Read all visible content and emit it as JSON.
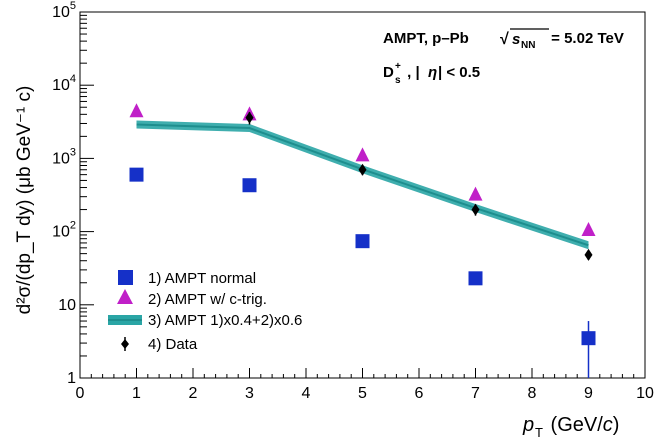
{
  "chart_data": {
    "type": "scatter",
    "log_y": true,
    "xlim": [
      0,
      10
    ],
    "ylim": [
      1,
      100000
    ],
    "x_ticks": [
      0,
      1,
      2,
      3,
      4,
      5,
      6,
      7,
      8,
      9,
      10
    ],
    "y_ticks": [
      {
        "value": 1,
        "base": "1",
        "exp": ""
      },
      {
        "value": 10,
        "base": "10",
        "exp": ""
      },
      {
        "value": 100,
        "base": "10",
        "exp": "2"
      },
      {
        "value": 1000,
        "base": "10",
        "exp": "3"
      },
      {
        "value": 10000,
        "base": "10",
        "exp": "4"
      },
      {
        "value": 100000,
        "base": "10",
        "exp": "5"
      }
    ],
    "xlabel": {
      "var": "p",
      "sub": "T",
      "unit_open": " (GeV/",
      "unit_c": "c",
      "unit_close": ")"
    },
    "ylabel": {
      "text": "d²σ/(dp_T dy) (μb GeV⁻¹ c)"
    },
    "annotations": {
      "line1_main": "AMPT, p–Pb",
      "line1_sqrt": "√",
      "line1_s": "s",
      "line1_sub": "NN",
      "line1_value": " = 5.02 TeV",
      "line2_particle": "D",
      "line2_sup": "+",
      "line2_sub": "s",
      "line2_rest": " , |",
      "line2_eta": "η",
      "line2_cut": "| < 0.5"
    },
    "legend": {
      "position": "bottom-left",
      "entries": [
        {
          "label": "1) AMPT normal"
        },
        {
          "label": "2) AMPT w/ c-trig."
        },
        {
          "label": "3) AMPT 1)x0.4+2)x0.6"
        },
        {
          "label": "4) Data"
        }
      ]
    },
    "series": [
      {
        "name": "1) AMPT normal",
        "marker": "square",
        "color": "#1530c8",
        "x": [
          1,
          3,
          5,
          7,
          9
        ],
        "y": [
          600,
          430,
          74,
          23,
          3.5
        ],
        "yerr": [
          0,
          0,
          0,
          2,
          2.5
        ]
      },
      {
        "name": "2) AMPT w/ c-trig.",
        "marker": "triangle",
        "color": "#c020c8",
        "x": [
          1,
          3,
          5,
          7,
          9
        ],
        "y": [
          4400,
          4000,
          1100,
          320,
          105
        ]
      },
      {
        "name": "3) AMPT 1)x0.4+2)x0.6",
        "marker": "band",
        "color": "#2aa5a5",
        "x": [
          1,
          3,
          5,
          7,
          9
        ],
        "y": [
          2900,
          2600,
          710,
          210,
          65
        ]
      },
      {
        "name": "4) Data",
        "marker": "diamond",
        "color": "#000000",
        "x": [
          1,
          3,
          5,
          7,
          9
        ],
        "y": [
          null,
          3600,
          700,
          200,
          48
        ],
        "yerr": [
          0,
          700,
          110,
          35,
          7
        ]
      }
    ]
  }
}
